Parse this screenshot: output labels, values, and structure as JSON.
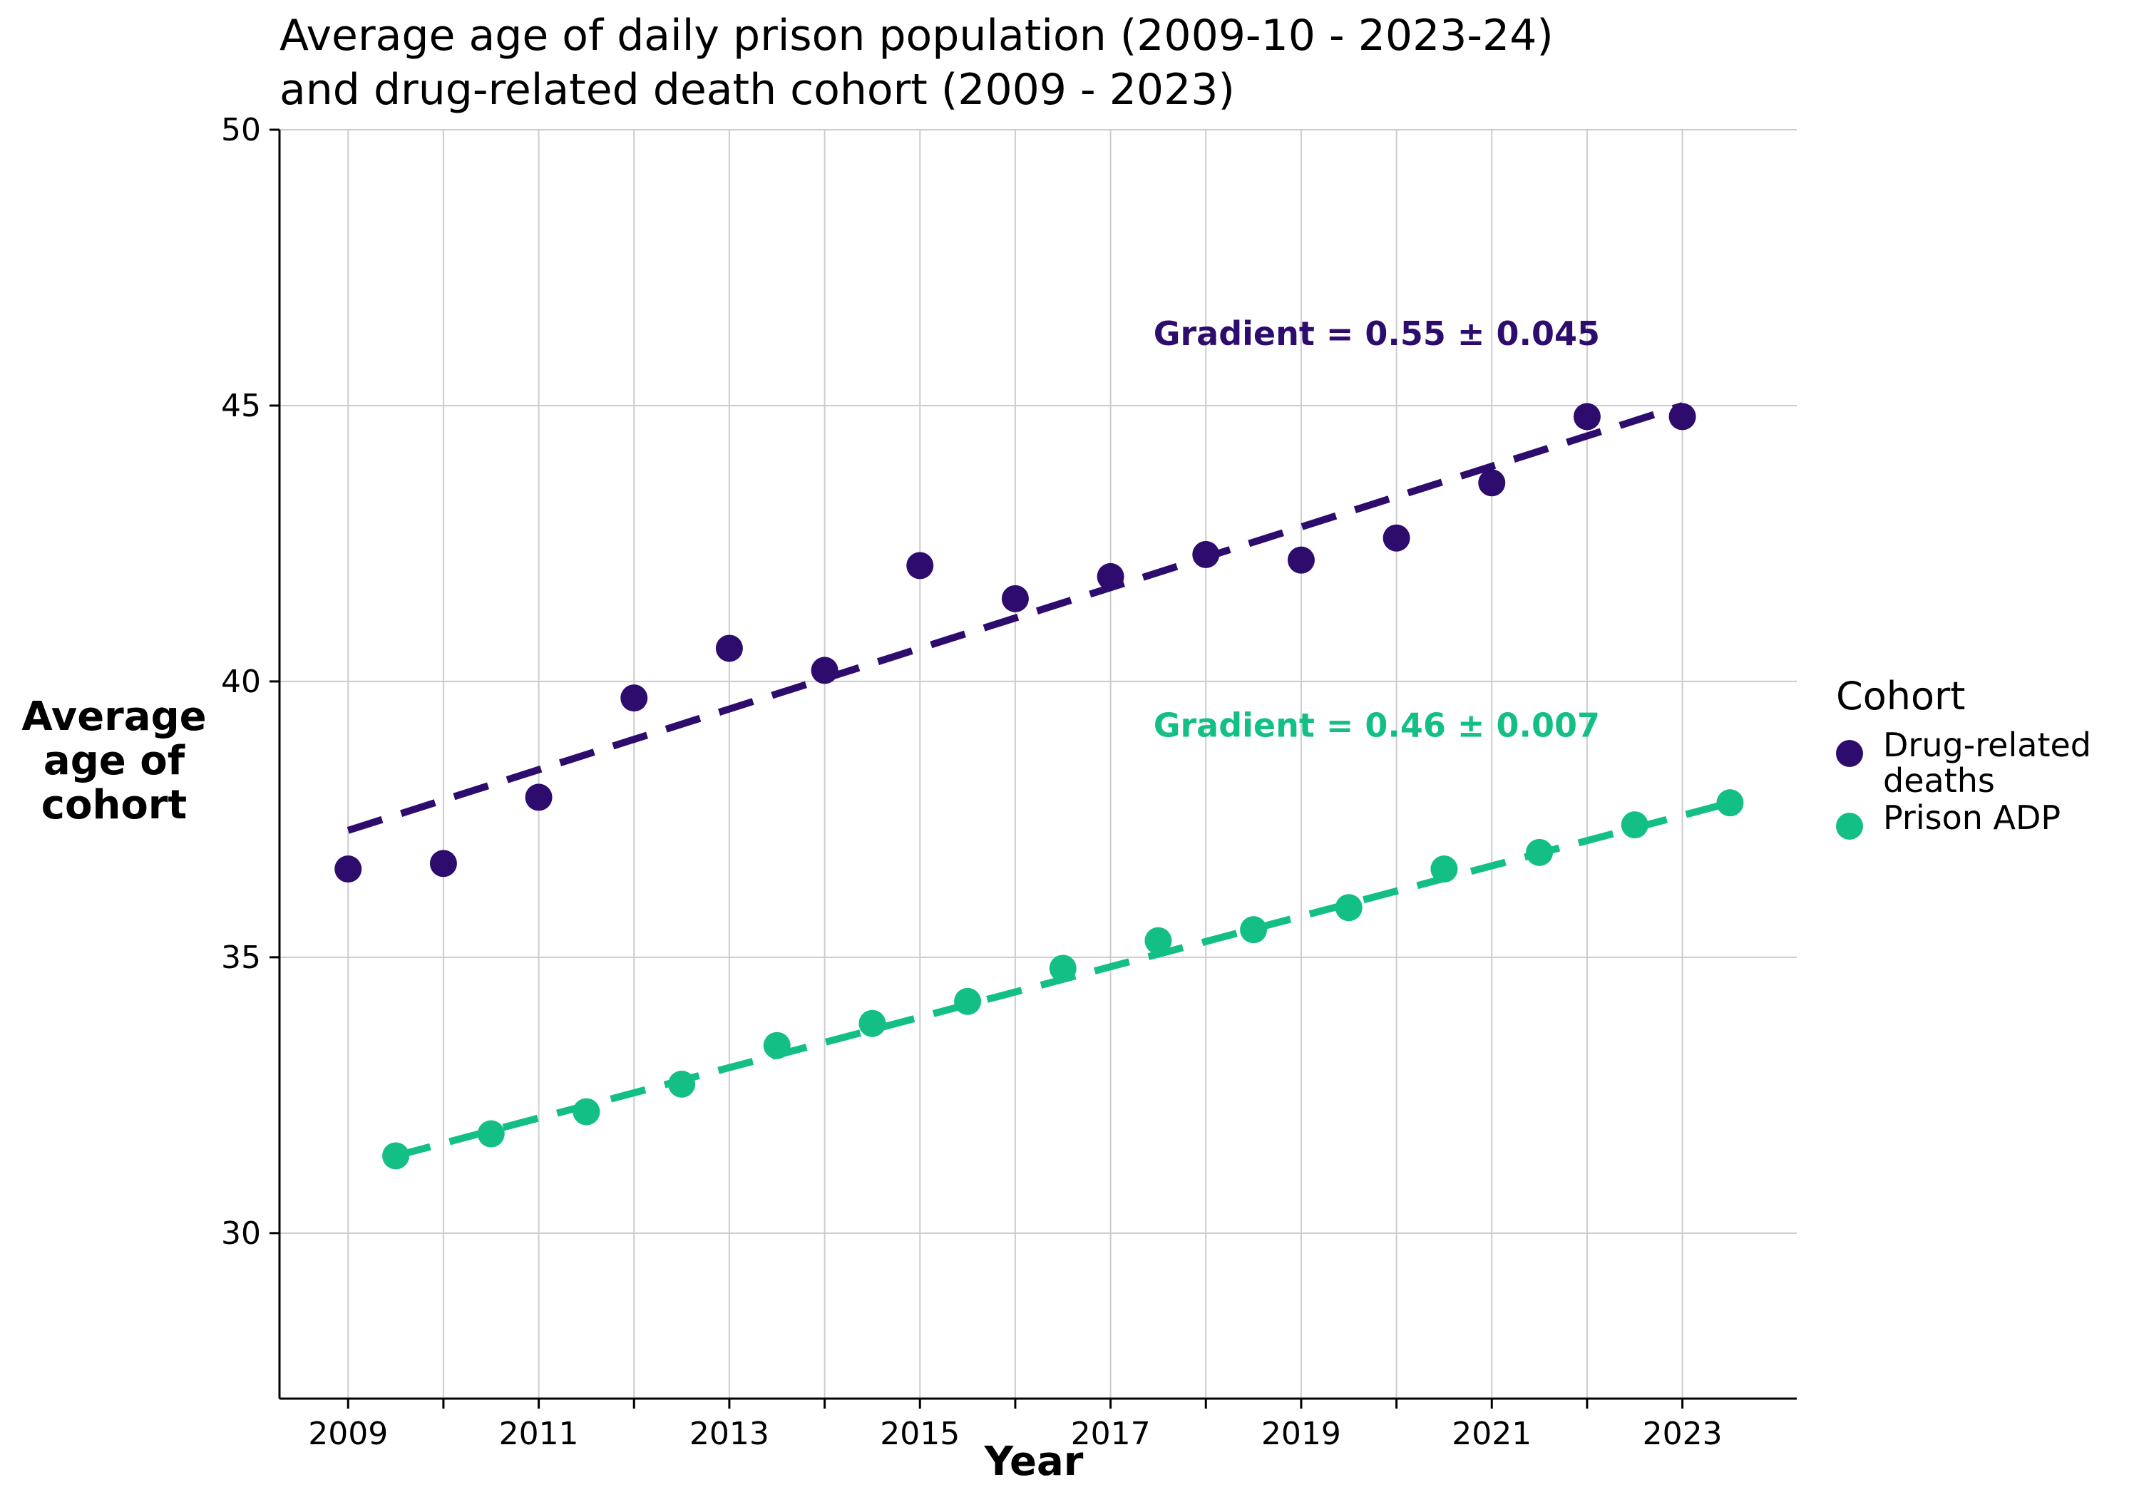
{
  "title_lines": [
    "Average age of daily prison population (2009-10 - 2023-24)",
    "and drug-related death cohort (2009 - 2023)"
  ],
  "chart_data": {
    "type": "scatter",
    "title": "Average age of daily prison population (2009-10 - 2023-24) and drug-related death cohort (2009 - 2023)",
    "xlabel": "Year",
    "ylabel_lines": [
      "Average",
      "age of",
      "cohort"
    ],
    "xlim": [
      2008.28,
      2024.2
    ],
    "ylim": [
      27.0,
      50.0
    ],
    "x_ticks": [
      2009,
      2010,
      2011,
      2012,
      2013,
      2014,
      2015,
      2016,
      2017,
      2018,
      2019,
      2020,
      2021,
      2022,
      2023
    ],
    "x_tick_labels": [
      "2009",
      "",
      "2011",
      "",
      "2013",
      "",
      "2015",
      "",
      "2017",
      "",
      "2019",
      "",
      "2021",
      "",
      "2023"
    ],
    "y_ticks": [
      30,
      35,
      40,
      45,
      50
    ],
    "grid": true,
    "legend_title": "Cohort",
    "legend_position": "right",
    "series": [
      {
        "name": "Drug-related deaths",
        "color": "#2d0c6e",
        "x": [
          2009,
          2010,
          2011,
          2012,
          2013,
          2014,
          2015,
          2016,
          2017,
          2018,
          2019,
          2020,
          2021,
          2022,
          2023
        ],
        "y": [
          36.6,
          36.7,
          37.9,
          39.7,
          40.6,
          40.2,
          42.1,
          41.5,
          41.9,
          42.3,
          42.2,
          42.6,
          43.6,
          44.8,
          44.8
        ],
        "trend": {
          "start": [
            2009,
            37.3
          ],
          "end": [
            2023,
            45.0
          ]
        },
        "annotation": {
          "text": "Gradient = 0.55 ± 0.045",
          "x": 2017.45,
          "y": 46.1
        }
      },
      {
        "name": "Prison ADP",
        "color": "#14bf86",
        "x": [
          2009.5,
          2010.5,
          2011.5,
          2012.5,
          2013.5,
          2014.5,
          2015.5,
          2016.5,
          2017.5,
          2018.5,
          2019.5,
          2020.5,
          2021.5,
          2022.5,
          2023.5
        ],
        "y": [
          31.4,
          31.8,
          32.2,
          32.7,
          33.4,
          33.8,
          34.2,
          34.8,
          35.3,
          35.5,
          35.9,
          36.6,
          36.9,
          37.4,
          37.8
        ],
        "trend": {
          "start": [
            2009.5,
            31.4
          ],
          "end": [
            2023.5,
            37.8
          ]
        },
        "annotation": {
          "text": "Gradient = 0.46 ± 0.007",
          "x": 2017.45,
          "y": 39.0
        }
      }
    ]
  }
}
